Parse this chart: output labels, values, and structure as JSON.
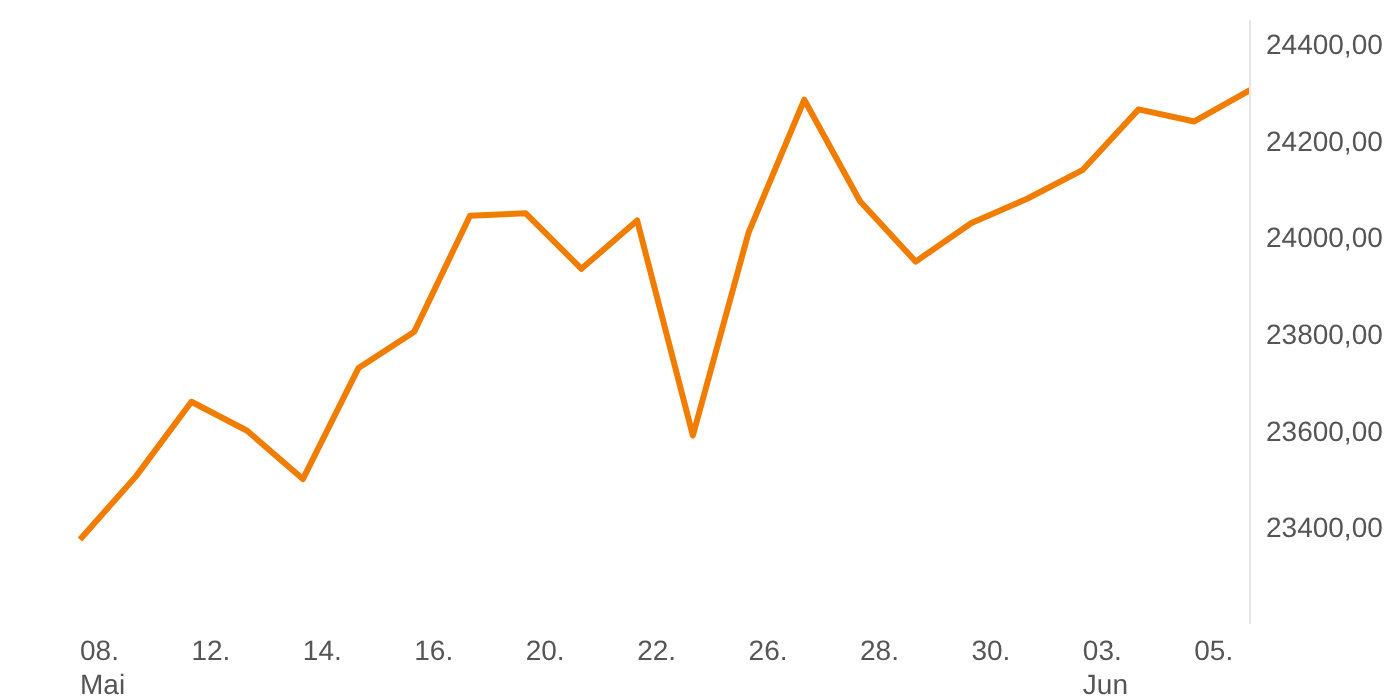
{
  "chart_data": {
    "type": "line",
    "categories": [
      "08.\nMai",
      null,
      "12.",
      null,
      "14.",
      null,
      "16.",
      null,
      "20.",
      null,
      "22.",
      null,
      "26.",
      null,
      "28.",
      null,
      "30.",
      null,
      "03.\nJun",
      null,
      "05.",
      null
    ],
    "series": [
      {
        "color": "#f07c00",
        "values": [
          23375,
          23505,
          23660,
          23600,
          23500,
          23730,
          23805,
          24045,
          24050,
          23935,
          24035,
          23590,
          24010,
          24285,
          24075,
          23950,
          24030,
          24080,
          24140,
          24265,
          24240,
          24305
        ]
      }
    ],
    "ylim": [
      23200,
      24450
    ],
    "yticks": [
      {
        "value": 23400,
        "label": "23400,00"
      },
      {
        "value": 23600,
        "label": "23600,00"
      },
      {
        "value": 23800,
        "label": "23800,00"
      },
      {
        "value": 24000,
        "label": "24000,00"
      },
      {
        "value": 24200,
        "label": "24200,00"
      },
      {
        "value": 24400,
        "label": "24400,00"
      }
    ],
    "grid": false,
    "legend": false,
    "marker": "none",
    "line_style": "solid"
  }
}
